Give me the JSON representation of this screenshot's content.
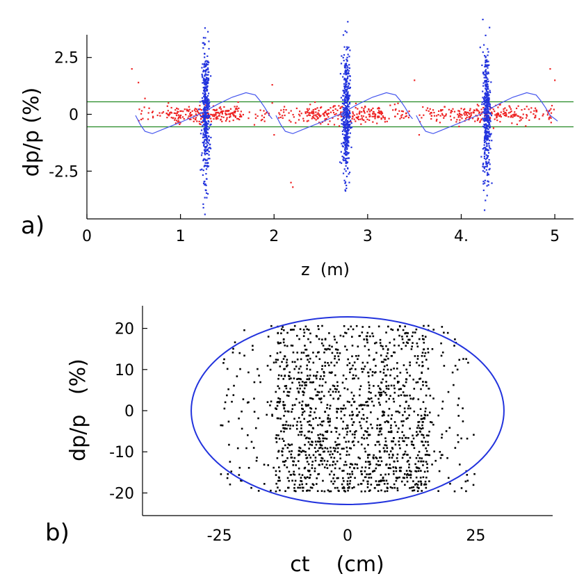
{
  "chart_data": [
    {
      "type": "scatter",
      "panel_label": "a)",
      "xlabel": "z  (m)",
      "ylabel": "dp/p  (%)",
      "xlim": [
        0,
        5.2
      ],
      "ylim": [
        -4.6,
        3.5
      ],
      "xticks": [
        0,
        1,
        2,
        3,
        4,
        5
      ],
      "xtick_labels": [
        "0",
        "1",
        "2",
        "3",
        "4.",
        "5"
      ],
      "yticks": [
        2.5,
        0,
        -2.5
      ],
      "ytick_labels": [
        "2.5",
        "0",
        "-2.5"
      ],
      "colors": {
        "red": "#ee2222",
        "blue": "#2233dd",
        "curve": "#4455ee",
        "band": "#228822"
      },
      "band_lines": [
        0.55,
        -0.55
      ],
      "clusters": [
        {
          "name": "longitudinal (red)",
          "x_ranges": [
            [
              0.55,
              1.95
            ],
            [
              2.05,
              3.45
            ],
            [
              3.55,
              5.0
            ]
          ],
          "center_dp": 0.0,
          "spread_dp": 0.3
        },
        {
          "name": "transverse (blue)",
          "x_centers": [
            1.27,
            2.77,
            4.27
          ],
          "x_spread": 0.04,
          "dp_range": [
            -4.5,
            4.3
          ]
        }
      ],
      "stray_points": [
        {
          "x": 0.48,
          "y": 2.0
        },
        {
          "x": 0.55,
          "y": 1.4
        },
        {
          "x": 0.62,
          "y": 0.7
        },
        {
          "x": 1.98,
          "y": 1.3
        },
        {
          "x": 1.98,
          "y": 0.5
        },
        {
          "x": 2.0,
          "y": -0.9
        },
        {
          "x": 2.18,
          "y": -3.0
        },
        {
          "x": 2.2,
          "y": -3.2
        },
        {
          "x": 3.5,
          "y": 1.5
        },
        {
          "x": 3.55,
          "y": -0.9
        },
        {
          "x": 4.95,
          "y": 2.0
        },
        {
          "x": 5.0,
          "y": 1.5
        }
      ],
      "curve": {
        "name": "sawtooth phase curve",
        "segments": [
          {
            "x": [
              0.52,
              0.57,
              0.62,
              0.7,
              0.85,
              1.0,
              1.2,
              1.4,
              1.55,
              1.7,
              1.8,
              1.85,
              1.9,
              1.95,
              1.98
            ],
            "y": [
              -0.05,
              -0.45,
              -0.75,
              -0.85,
              -0.6,
              -0.35,
              0.0,
              0.45,
              0.75,
              0.95,
              0.85,
              0.6,
              0.3,
              -0.05,
              -0.2
            ]
          },
          {
            "x": [
              2.02,
              2.07,
              2.12,
              2.2,
              2.35,
              2.5,
              2.7,
              2.9,
              3.05,
              3.2,
              3.3,
              3.35,
              3.4,
              3.45,
              3.48
            ],
            "y": [
              -0.05,
              -0.45,
              -0.75,
              -0.85,
              -0.6,
              -0.35,
              0.0,
              0.45,
              0.75,
              0.95,
              0.85,
              0.6,
              0.3,
              -0.05,
              -0.2
            ]
          },
          {
            "x": [
              3.52,
              3.57,
              3.62,
              3.7,
              3.85,
              4.0,
              4.2,
              4.4,
              4.55,
              4.7,
              4.8,
              4.85,
              4.9,
              4.95,
              5.0,
              5.03
            ],
            "y": [
              -0.05,
              -0.45,
              -0.75,
              -0.85,
              -0.6,
              -0.35,
              0.0,
              0.45,
              0.75,
              0.95,
              0.85,
              0.6,
              0.3,
              -0.05,
              -0.2,
              -0.3
            ]
          }
        ]
      }
    },
    {
      "type": "scatter",
      "panel_label": "b)",
      "xlabel": "ct    (cm)",
      "ylabel": "dp/p   (%)",
      "xlim": [
        -40,
        40
      ],
      "ylim": [
        -25.5,
        25.5
      ],
      "xticks": [
        -25,
        0,
        25
      ],
      "xtick_labels": [
        "-25",
        "0",
        "25"
      ],
      "yticks": [
        20,
        10,
        0,
        -10,
        -20
      ],
      "ytick_labels": [
        "20",
        "10",
        "0",
        "-10",
        "-20"
      ],
      "colors": {
        "points": "#000000",
        "ellipse": "#2233dd"
      },
      "ellipse": {
        "center": [
          0,
          0
        ],
        "semi_axis_ct": 30.5,
        "semi_axis_dp": 22.8
      },
      "point_cloud": {
        "name": "particle distribution",
        "dp_range": [
          -19.5,
          21
        ],
        "ct_range": [
          -25,
          25
        ],
        "row_spacing_dp": 0.8
      }
    }
  ]
}
